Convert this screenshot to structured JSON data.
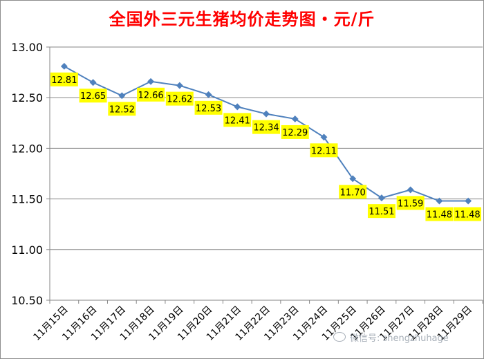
{
  "chart_data": {
    "type": "line",
    "title": "全国外三元生猪均价走势图・元/斤",
    "categories": [
      "11月15日",
      "11月16日",
      "11月17日",
      "11月18日",
      "11月19日",
      "11月20日",
      "11月21日",
      "11月22日",
      "11月23日",
      "11月24日",
      "11月25日",
      "11月26日",
      "11月27日",
      "11月28日",
      "11月29日"
    ],
    "values": [
      12.81,
      12.65,
      12.52,
      12.66,
      12.62,
      12.53,
      12.41,
      12.34,
      12.29,
      12.11,
      11.7,
      11.51,
      11.59,
      11.48,
      11.48
    ],
    "data_labels": [
      "12.81",
      "12.65",
      "12.52",
      "12.66",
      "12.62",
      "12.53",
      "12.41",
      "12.34",
      "12.29",
      "12.11",
      "11.70",
      "11.51",
      "11.59",
      "11.48",
      "11.48"
    ],
    "ylim": [
      10.5,
      13.0
    ],
    "yticks": [
      "10.50",
      "11.00",
      "11.50",
      "12.00",
      "12.50",
      "13.00"
    ],
    "ytick_values": [
      10.5,
      11.0,
      11.5,
      12.0,
      12.5,
      13.0
    ],
    "grid": true,
    "legend": "none",
    "colors": {
      "line": "#4f81bd",
      "label_bg": "#ffff00",
      "title": "#ff0000",
      "grid": "#868686"
    }
  },
  "watermark": {
    "text": "微信号: shengzhuhage",
    "icon": "wechat-icon"
  }
}
